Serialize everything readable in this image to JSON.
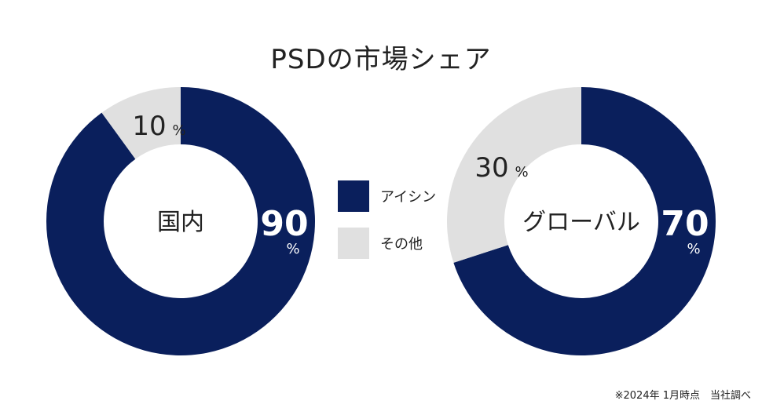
{
  "title": "PSDの市場シェア",
  "colors": {
    "aisin": "#0a1f5c",
    "other": "#e0e0e0"
  },
  "legend": [
    {
      "label": "アイシン",
      "color": "#0a1f5c"
    },
    {
      "label": "その他",
      "color": "#e0e0e0"
    }
  ],
  "chart_data": [
    {
      "type": "pie",
      "center_label": "国内",
      "slices": [
        {
          "name": "アイシン",
          "value": 90,
          "value_label": "90",
          "unit": "%"
        },
        {
          "name": "その他",
          "value": 10,
          "value_label": "10",
          "unit": "%"
        }
      ]
    },
    {
      "type": "pie",
      "center_label": "グローバル",
      "slices": [
        {
          "name": "アイシン",
          "value": 70,
          "value_label": "70",
          "unit": "%"
        },
        {
          "name": "その他",
          "value": 30,
          "value_label": "30",
          "unit": "%"
        }
      ]
    }
  ],
  "footnote": "※2024年 1月時点　当社調べ"
}
